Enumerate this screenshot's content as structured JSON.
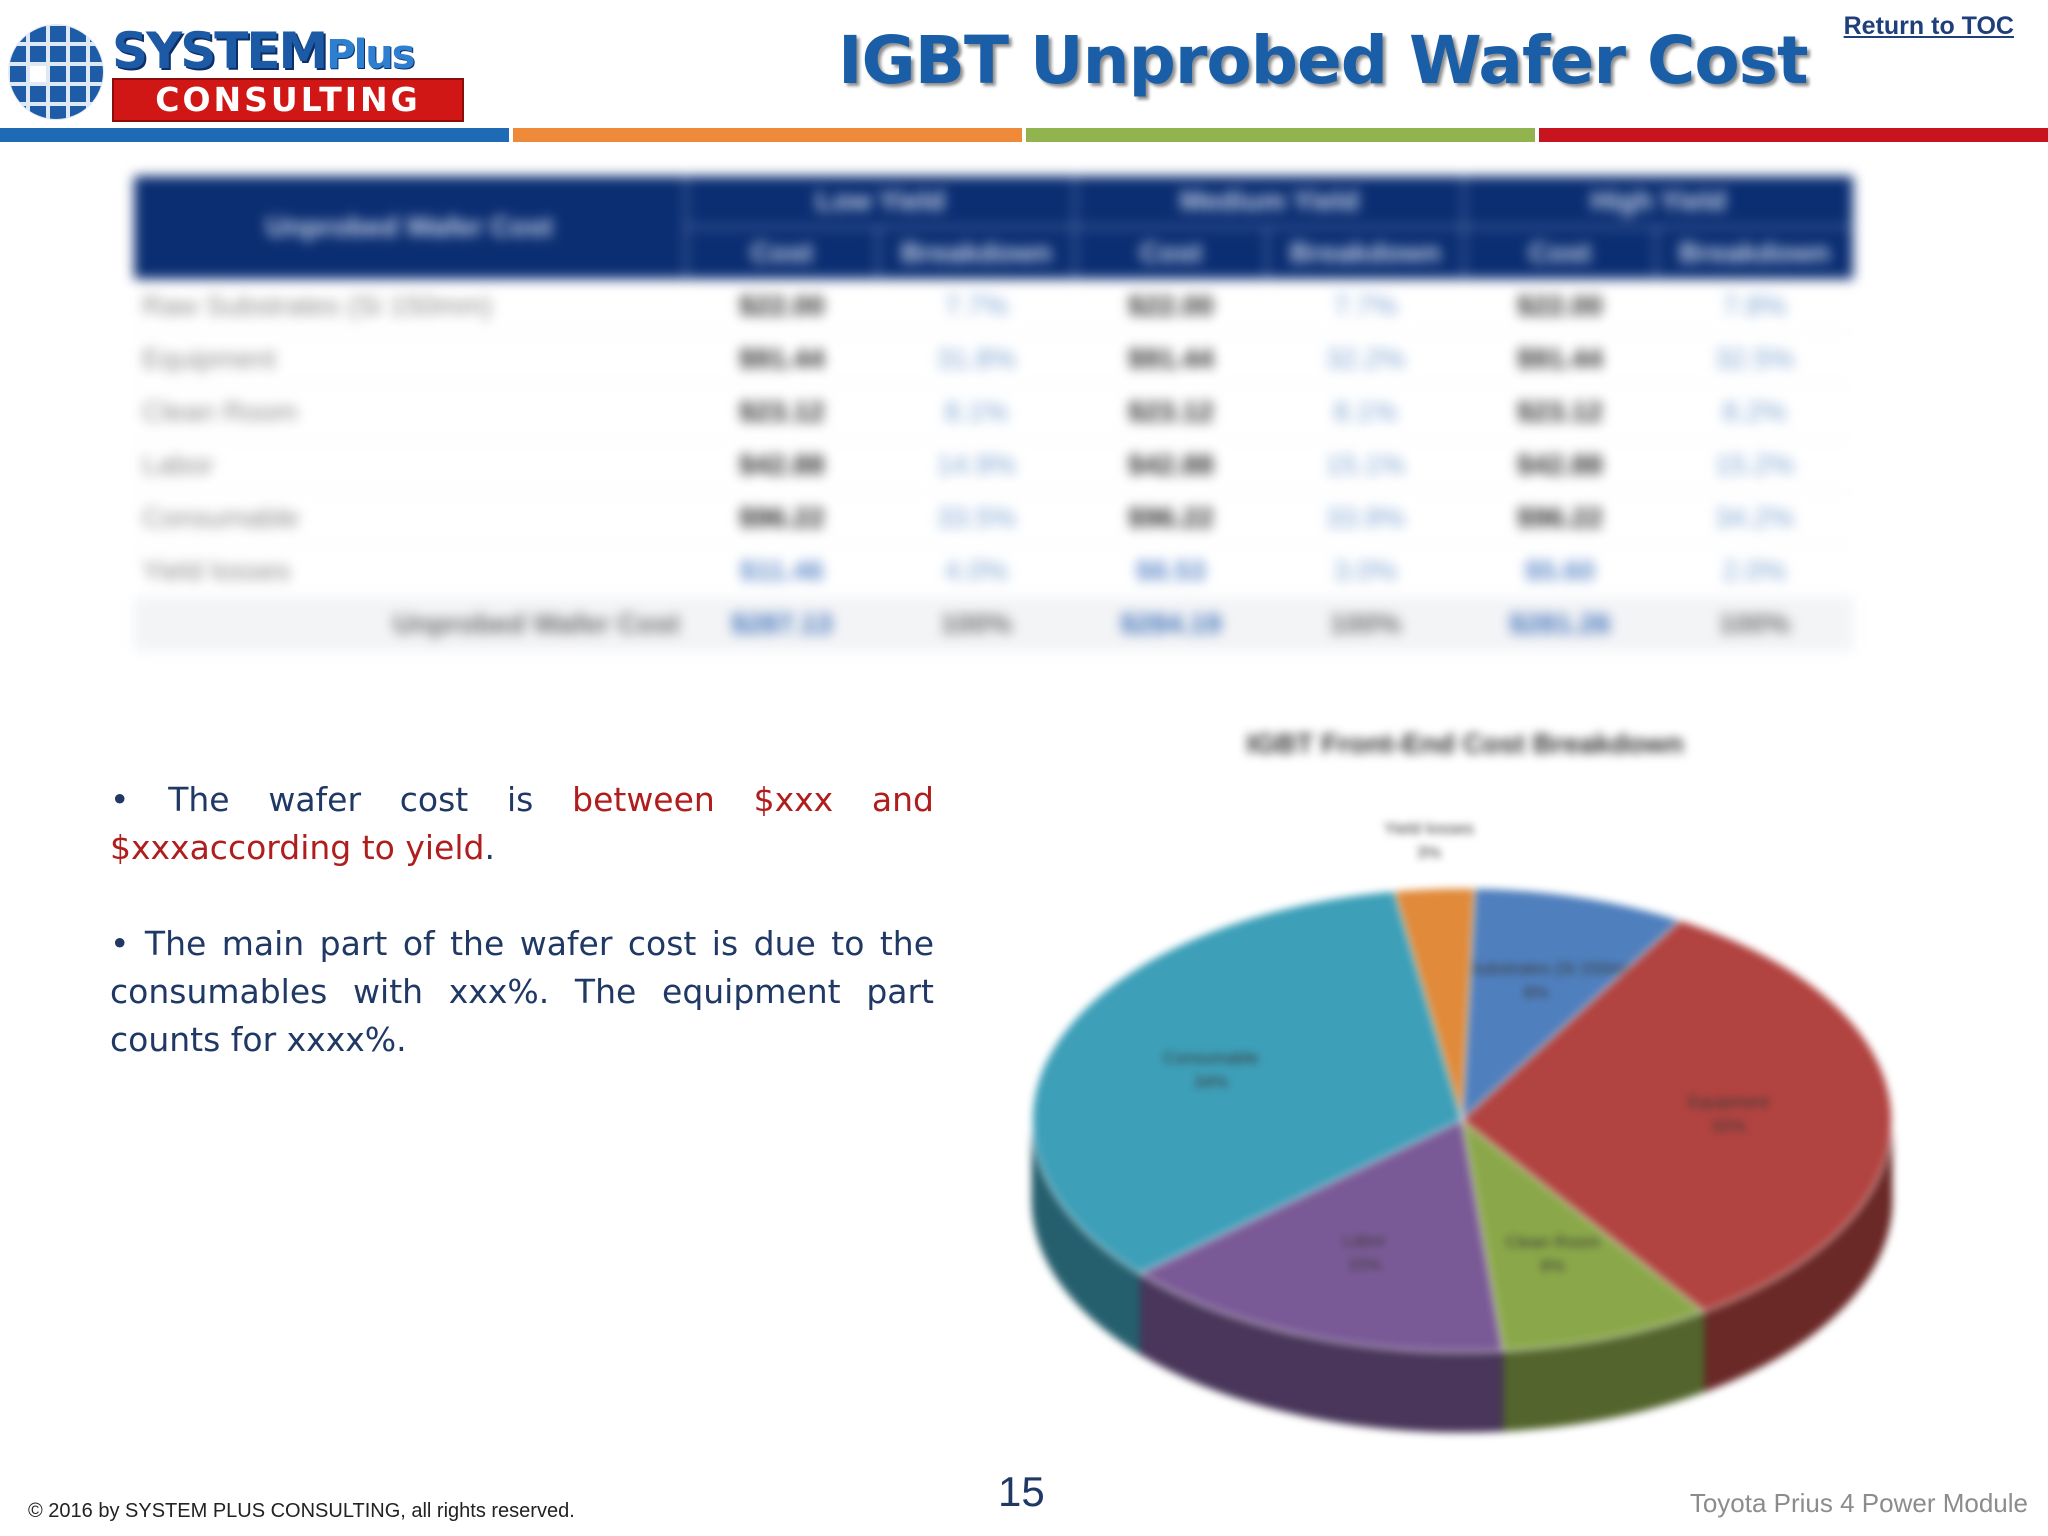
{
  "header": {
    "logo_top": "SYSTEM",
    "logo_plus": "Plus",
    "logo_bottom": "CONSULTING",
    "title": "IGBT Unprobed Wafer Cost",
    "toc_link": "Return to TOC"
  },
  "colors": {
    "band_blue": "#1f6ab4",
    "band_orange": "#ef8a3a",
    "band_green": "#92b44f",
    "band_red": "#c8141e",
    "table_header": "#0b2e72",
    "highlight_text": "#b01d1d"
  },
  "table": {
    "corner_header": "Unprobed Wafer Cost",
    "groups": [
      "Low Yield",
      "Medium Yield",
      "High Yield"
    ],
    "subheaders": [
      "Cost",
      "Breakdown",
      "Cost",
      "Breakdown",
      "Cost",
      "Breakdown"
    ],
    "rows": [
      {
        "label": "Raw Substrates (Si 150mm)",
        "cells": [
          "$22.00",
          "7.7%",
          "$22.00",
          "7.7%",
          "$22.00",
          "7.8%"
        ]
      },
      {
        "label": "Equipment",
        "cells": [
          "$91.44",
          "31.8%",
          "$91.44",
          "32.2%",
          "$91.44",
          "32.5%"
        ]
      },
      {
        "label": "Clean Room",
        "cells": [
          "$23.12",
          "8.1%",
          "$23.12",
          "8.1%",
          "$23.12",
          "8.2%"
        ]
      },
      {
        "label": "Labor",
        "cells": [
          "$42.88",
          "14.9%",
          "$42.88",
          "15.1%",
          "$42.88",
          "15.2%"
        ]
      },
      {
        "label": "Consumable",
        "cells": [
          "$96.22",
          "33.5%",
          "$96.22",
          "33.9%",
          "$96.22",
          "34.2%"
        ]
      },
      {
        "label": "Yield losses",
        "cells": [
          "$11.46",
          "4.0%",
          "$8.53",
          "3.0%",
          "$5.60",
          "2.0%"
        ]
      }
    ],
    "total": {
      "label": "Unprobed Wafer Cost",
      "cells": [
        "$287.13",
        "100%",
        "$284.19",
        "100%",
        "$281.26",
        "100%"
      ]
    }
  },
  "bullets": {
    "b1_prefix": "• The wafer cost is ",
    "b1_highlight": "between $xxx and $xxxaccording to yield",
    "b1_suffix": ".",
    "b2": "• The main part of the wafer cost is due to the consumables with xxx%. The equipment part counts for xxxx%."
  },
  "chart_data": {
    "type": "pie",
    "title": "IGBT Front-End Cost Breakdown",
    "slices": [
      {
        "label": "Raw Substrates (Si 150mm)",
        "value": 8,
        "color": "#4f7fbd"
      },
      {
        "label": "Equipment",
        "value": 32,
        "color": "#b14340"
      },
      {
        "label": "Clean Room",
        "value": 8,
        "color": "#8aa849"
      },
      {
        "label": "Labor",
        "value": 15,
        "color": "#7a5a96"
      },
      {
        "label": "Consumable",
        "value": 34,
        "color": "#3d9fb8"
      },
      {
        "label": "Yield losses",
        "value": 3,
        "color": "#e08a3a"
      }
    ],
    "data_labels": [
      "8%",
      "32%",
      "8%",
      "15%",
      "34%",
      "3%"
    ]
  },
  "footer": {
    "copyright": "© 2016 by SYSTEM PLUS CONSULTING, all rights reserved.",
    "page_number": "15",
    "right_text": "Toyota Prius 4 Power Module"
  }
}
